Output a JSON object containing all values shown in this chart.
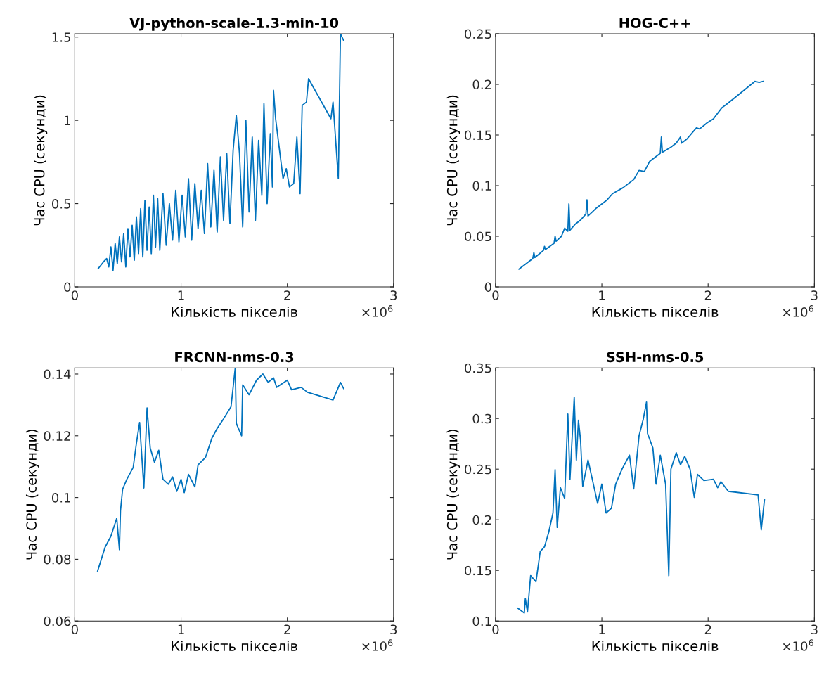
{
  "chart_data": [
    {
      "type": "line",
      "title": "VJ-python-scale-1.3-min-10",
      "xlabel": "Кількість пікселів",
      "ylabel": "Час CPU (секунди)",
      "annotations": [
        "×10$^{6}$"
      ],
      "xlim": [
        0,
        3
      ],
      "xticks": [
        0,
        1,
        2,
        3
      ],
      "ylim": [
        0,
        1.52
      ],
      "yticks": [
        0,
        0.5,
        1,
        1.5
      ],
      "x": [
        0.22,
        0.27,
        0.3,
        0.32,
        0.34,
        0.36,
        0.38,
        0.4,
        0.42,
        0.44,
        0.46,
        0.48,
        0.5,
        0.52,
        0.54,
        0.56,
        0.58,
        0.6,
        0.62,
        0.64,
        0.66,
        0.68,
        0.7,
        0.72,
        0.74,
        0.76,
        0.78,
        0.8,
        0.83,
        0.86,
        0.89,
        0.92,
        0.95,
        0.98,
        1.01,
        1.04,
        1.07,
        1.1,
        1.13,
        1.16,
        1.19,
        1.22,
        1.25,
        1.28,
        1.31,
        1.34,
        1.37,
        1.4,
        1.43,
        1.46,
        1.49,
        1.52,
        1.55,
        1.58,
        1.61,
        1.64,
        1.67,
        1.7,
        1.73,
        1.76,
        1.78,
        1.81,
        1.84,
        1.86,
        1.87,
        1.89,
        1.96,
        1.99,
        2.02,
        2.06,
        2.09,
        2.12,
        2.14,
        2.18,
        2.2,
        2.41,
        2.43,
        2.48,
        2.5,
        2.53
      ],
      "series": [
        {
          "color": "#0072bd",
          "values": [
            0.11,
            0.15,
            0.17,
            0.12,
            0.24,
            0.1,
            0.26,
            0.14,
            0.3,
            0.15,
            0.32,
            0.12,
            0.35,
            0.18,
            0.37,
            0.16,
            0.42,
            0.2,
            0.47,
            0.18,
            0.52,
            0.22,
            0.48,
            0.2,
            0.55,
            0.24,
            0.53,
            0.22,
            0.56,
            0.25,
            0.5,
            0.28,
            0.58,
            0.27,
            0.55,
            0.3,
            0.65,
            0.28,
            0.62,
            0.35,
            0.58,
            0.32,
            0.74,
            0.36,
            0.7,
            0.33,
            0.78,
            0.4,
            0.8,
            0.38,
            0.82,
            1.03,
            0.8,
            0.36,
            1.0,
            0.45,
            0.9,
            0.4,
            0.88,
            0.55,
            1.1,
            0.5,
            0.92,
            0.6,
            1.18,
            1.01,
            0.65,
            0.71,
            0.6,
            0.62,
            0.9,
            0.56,
            1.09,
            1.11,
            1.25,
            1.01,
            1.11,
            0.65,
            1.52,
            1.48
          ]
        }
      ]
    },
    {
      "type": "line",
      "title": "HOG-C++",
      "xlabel": "Кількість пікселів",
      "ylabel": "Час CPU (секунди)",
      "annotations": [
        "×10$^{6}$"
      ],
      "xlim": [
        0,
        3
      ],
      "xticks": [
        0,
        1,
        2,
        3
      ],
      "ylim": [
        0,
        0.25
      ],
      "yticks": [
        0,
        0.05,
        0.1,
        0.15,
        0.2,
        0.25
      ],
      "x": [
        0.22,
        0.35,
        0.36,
        0.37,
        0.45,
        0.46,
        0.47,
        0.55,
        0.56,
        0.57,
        0.62,
        0.65,
        0.68,
        0.69,
        0.7,
        0.75,
        0.8,
        0.85,
        0.86,
        0.87,
        0.95,
        1.0,
        1.05,
        1.1,
        1.2,
        1.3,
        1.35,
        1.4,
        1.45,
        1.5,
        1.55,
        1.56,
        1.57,
        1.65,
        1.7,
        1.74,
        1.75,
        1.8,
        1.89,
        1.92,
        1.99,
        2.05,
        2.13,
        2.17,
        2.3,
        2.44,
        2.48,
        2.52
      ],
      "series": [
        {
          "color": "#0072bd",
          "values": [
            0.0175,
            0.028,
            0.034,
            0.029,
            0.036,
            0.04,
            0.037,
            0.043,
            0.05,
            0.045,
            0.05,
            0.058,
            0.055,
            0.082,
            0.056,
            0.062,
            0.066,
            0.072,
            0.086,
            0.07,
            0.078,
            0.082,
            0.086,
            0.092,
            0.098,
            0.106,
            0.115,
            0.114,
            0.124,
            0.128,
            0.132,
            0.148,
            0.133,
            0.138,
            0.142,
            0.148,
            0.142,
            0.146,
            0.157,
            0.156,
            0.162,
            0.166,
            0.177,
            0.18,
            0.191,
            0.203,
            0.202,
            0.203
          ]
        }
      ]
    },
    {
      "type": "line",
      "title": "FRCNN-nms-0.3",
      "xlabel": "Кількість пікселів",
      "ylabel": "Час CPU (секунди)",
      "annotations": [
        "×10$^{6}$"
      ],
      "xlim": [
        0,
        3
      ],
      "xticks": [
        0,
        1,
        2,
        3
      ],
      "ylim": [
        0.06,
        0.142
      ],
      "yticks": [
        0.06,
        0.08,
        0.1,
        0.12,
        0.14
      ],
      "x": [
        0.215,
        0.285,
        0.34,
        0.395,
        0.42,
        0.43,
        0.45,
        0.49,
        0.55,
        0.58,
        0.61,
        0.65,
        0.68,
        0.71,
        0.75,
        0.79,
        0.83,
        0.88,
        0.92,
        0.96,
        1.0,
        1.03,
        1.07,
        1.13,
        1.16,
        1.23,
        1.29,
        1.34,
        1.4,
        1.47,
        1.51,
        1.52,
        1.57,
        1.58,
        1.64,
        1.71,
        1.77,
        1.82,
        1.87,
        1.9,
        2.0,
        2.04,
        2.13,
        2.19,
        2.43,
        2.5,
        2.53
      ],
      "series": [
        {
          "color": "#0072bd",
          "values": [
            0.0762,
            0.0839,
            0.0875,
            0.0933,
            0.0831,
            0.0957,
            0.1027,
            0.1059,
            0.1098,
            0.1176,
            0.1243,
            0.1031,
            0.129,
            0.116,
            0.1114,
            0.1153,
            0.1059,
            0.1043,
            0.1067,
            0.102,
            0.1059,
            0.1016,
            0.1075,
            0.1035,
            0.1106,
            0.113,
            0.1192,
            0.1224,
            0.1255,
            0.1294,
            0.142,
            0.124,
            0.12,
            0.1365,
            0.1333,
            0.138,
            0.14,
            0.1373,
            0.1388,
            0.1357,
            0.138,
            0.1349,
            0.1357,
            0.1341,
            0.1316,
            0.1373,
            0.1353
          ]
        }
      ]
    },
    {
      "type": "line",
      "title": "SSH-nms-0.5",
      "xlabel": "Кількість пікселів",
      "ylabel": "Час CPU (секунди)",
      "annotations": [
        "×10$^{6}$"
      ],
      "xlim": [
        0,
        3
      ],
      "xticks": [
        0,
        1,
        2,
        3
      ],
      "ylim": [
        0.1,
        0.35
      ],
      "yticks": [
        0.1,
        0.15,
        0.2,
        0.25,
        0.3,
        0.35
      ],
      "x": [
        0.21,
        0.27,
        0.28,
        0.3,
        0.33,
        0.38,
        0.42,
        0.46,
        0.5,
        0.54,
        0.56,
        0.58,
        0.61,
        0.65,
        0.68,
        0.7,
        0.74,
        0.76,
        0.78,
        0.8,
        0.82,
        0.87,
        0.91,
        0.96,
        1.0,
        1.04,
        1.09,
        1.13,
        1.19,
        1.26,
        1.3,
        1.35,
        1.39,
        1.42,
        1.43,
        1.48,
        1.51,
        1.55,
        1.6,
        1.63,
        1.65,
        1.7,
        1.74,
        1.78,
        1.83,
        1.87,
        1.9,
        1.96,
        2.05,
        2.09,
        2.12,
        2.19,
        2.47,
        2.5,
        2.53
      ],
      "series": [
        {
          "color": "#0072bd",
          "values": [
            0.1126,
            0.1079,
            0.1221,
            0.109,
            0.1448,
            0.1388,
            0.1686,
            0.1733,
            0.1876,
            0.2067,
            0.2495,
            0.1924,
            0.2317,
            0.221,
            0.3043,
            0.24,
            0.321,
            0.259,
            0.2983,
            0.278,
            0.2329,
            0.259,
            0.24,
            0.2162,
            0.2352,
            0.2067,
            0.2114,
            0.2352,
            0.25,
            0.2638,
            0.2305,
            0.2829,
            0.2995,
            0.3162,
            0.2852,
            0.271,
            0.2352,
            0.2638,
            0.2352,
            0.1448,
            0.25,
            0.2662,
            0.2543,
            0.2626,
            0.25,
            0.2221,
            0.2448,
            0.2388,
            0.24,
            0.2317,
            0.2376,
            0.2281,
            0.2245,
            0.19,
            0.2198
          ]
        }
      ]
    }
  ]
}
